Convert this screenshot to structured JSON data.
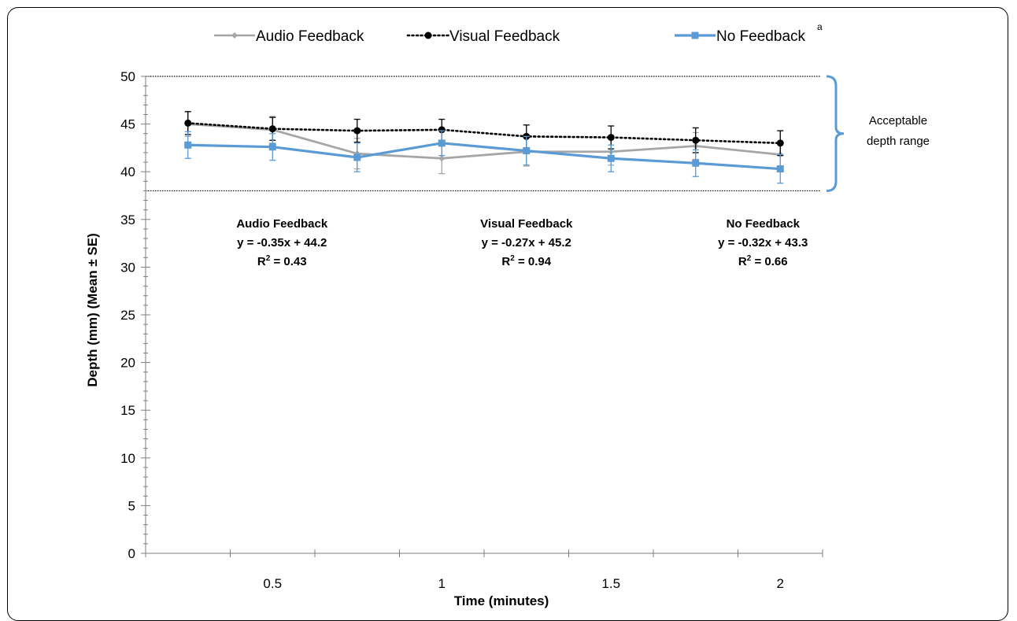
{
  "chart_data": {
    "type": "line",
    "x": [
      0.25,
      0.5,
      0.75,
      1.0,
      1.25,
      1.5,
      1.75,
      2.0
    ],
    "x_ticks": [
      "0.5",
      "1",
      "1.5",
      "2"
    ],
    "x_tick_values": [
      0.5,
      1,
      1.5,
      2
    ],
    "y_ticks": [
      "0",
      "5",
      "10",
      "15",
      "20",
      "25",
      "30",
      "35",
      "40",
      "45",
      "50"
    ],
    "xlim": [
      0.125,
      2.125
    ],
    "ylim": [
      0,
      50
    ],
    "xlabel": "Time (minutes)",
    "ylabel": "Depth (mm) (Mean ± SE)",
    "grid": false,
    "legend_position": "top",
    "legend_superscript": "a",
    "series": [
      {
        "name": "Audio Feedback",
        "color": "#a6a6a6",
        "style": "solid",
        "marker": "diamond",
        "values": [
          45.0,
          44.4,
          41.9,
          41.4,
          42.1,
          42.1,
          42.7,
          41.8
        ],
        "se": [
          1.3,
          1.4,
          1.6,
          1.6,
          1.5,
          1.4,
          1.4,
          1.3
        ]
      },
      {
        "name": "Visual Feedback",
        "color": "#000000",
        "style": "dotted",
        "marker": "circle",
        "values": [
          45.1,
          44.5,
          44.3,
          44.4,
          43.7,
          43.6,
          43.3,
          43.0
        ],
        "se": [
          1.2,
          1.2,
          1.2,
          1.1,
          1.2,
          1.2,
          1.3,
          1.3
        ]
      },
      {
        "name": "No Feedback",
        "color": "#5b9bd5",
        "style": "solid",
        "marker": "square",
        "values": [
          42.8,
          42.6,
          41.5,
          43.0,
          42.2,
          41.4,
          40.9,
          40.3
        ],
        "se": [
          1.4,
          1.4,
          1.5,
          1.3,
          1.5,
          1.4,
          1.4,
          1.5
        ]
      }
    ],
    "reference_band": {
      "lower": 38,
      "upper": 50,
      "label_line1": "Acceptable",
      "label_line2": "depth range"
    },
    "annotations": [
      {
        "title": "Audio Feedback",
        "equation": "y = -0.35x + 44.2",
        "r2_label": "R",
        "r2_sup": "2",
        "r2_value": " = 0.43"
      },
      {
        "title": "Visual Feedback",
        "equation": "y = -0.27x + 45.2",
        "r2_label": "R",
        "r2_sup": "2",
        "r2_value": " = 0.94"
      },
      {
        "title": "No Feedback",
        "equation": "y = -0.32x + 43.3",
        "r2_label": "R",
        "r2_sup": "2",
        "r2_value": " = 0.66"
      }
    ]
  }
}
